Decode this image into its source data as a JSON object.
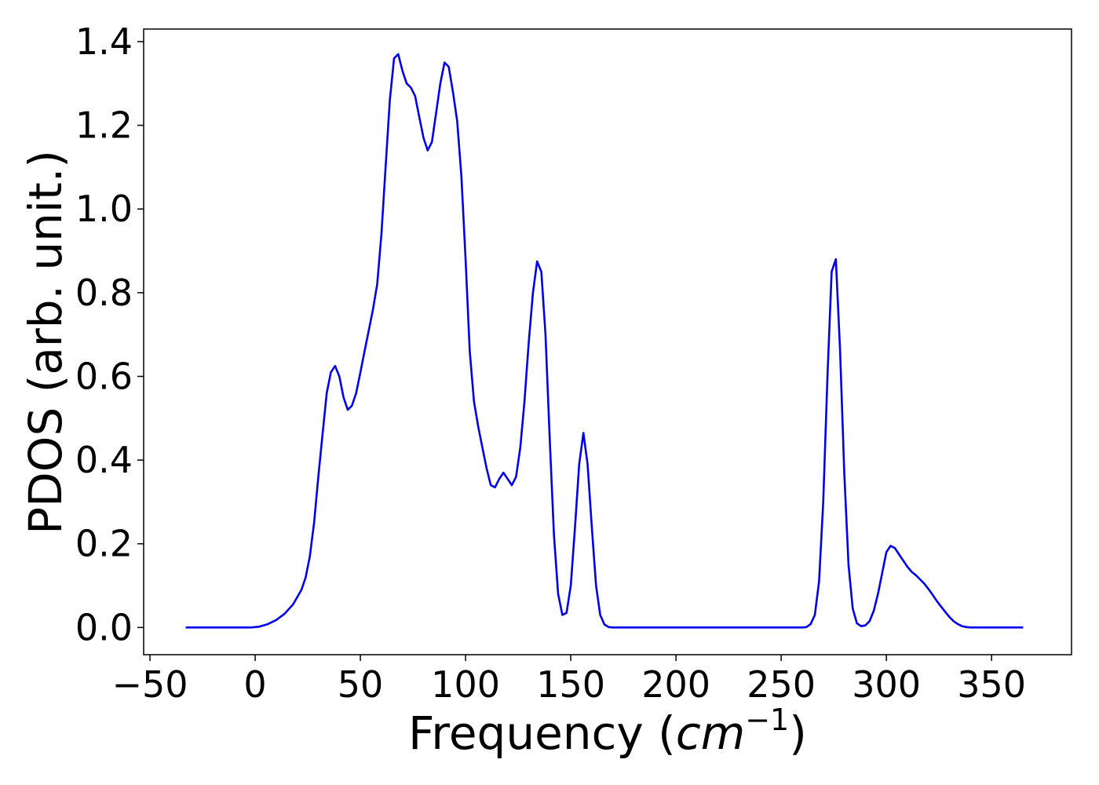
{
  "chart_data": {
    "type": "line",
    "title": "",
    "xlabel": "Frequency",
    "xlabel_unit": "cm",
    "xlabel_unit_exponent": "−1",
    "ylabel": "PDOS (arb. unit.)",
    "xlim": [
      -53,
      388
    ],
    "ylim": [
      -0.065,
      1.43
    ],
    "xticks": [
      -50,
      0,
      50,
      100,
      150,
      200,
      250,
      300,
      350
    ],
    "xtick_labels": [
      "−50",
      "0",
      "50",
      "100",
      "150",
      "200",
      "250",
      "300",
      "350"
    ],
    "yticks": [
      0.0,
      0.2,
      0.4,
      0.6,
      0.8,
      1.0,
      1.2,
      1.4
    ],
    "ytick_labels": [
      "0.0",
      "0.2",
      "0.4",
      "0.6",
      "0.8",
      "1.0",
      "1.2",
      "1.4"
    ],
    "grid": false,
    "legend": "none",
    "series": [
      {
        "color": "#0000ee",
        "x": [
          -33,
          -20,
          -10,
          -2,
          2,
          6,
          10,
          14,
          18,
          22,
          24,
          26,
          28,
          30,
          32,
          34,
          36,
          38,
          40,
          42,
          44,
          46,
          48,
          50,
          52,
          54,
          56,
          58,
          60,
          62,
          64,
          66,
          68,
          70,
          72,
          74,
          76,
          78,
          80,
          82,
          84,
          86,
          88,
          90,
          92,
          94,
          96,
          98,
          100,
          102,
          104,
          106,
          108,
          110,
          112,
          114,
          116,
          118,
          120,
          122,
          124,
          126,
          128,
          130,
          132,
          134,
          136,
          138,
          140,
          142,
          144,
          146,
          148,
          150,
          152,
          154,
          156,
          158,
          160,
          162,
          164,
          166,
          168,
          170,
          180,
          200,
          220,
          240,
          260,
          262,
          264,
          266,
          268,
          270,
          272,
          274,
          276,
          278,
          280,
          282,
          284,
          286,
          288,
          290,
          292,
          294,
          296,
          298,
          300,
          302,
          304,
          306,
          308,
          310,
          312,
          314,
          316,
          318,
          320,
          322,
          324,
          326,
          328,
          330,
          332,
          334,
          336,
          338,
          340,
          350,
          365
        ],
        "y": [
          0,
          0,
          0,
          0,
          0.002,
          0.008,
          0.018,
          0.033,
          0.055,
          0.09,
          0.12,
          0.17,
          0.25,
          0.36,
          0.46,
          0.56,
          0.61,
          0.625,
          0.6,
          0.55,
          0.52,
          0.53,
          0.56,
          0.61,
          0.66,
          0.71,
          0.76,
          0.82,
          0.94,
          1.1,
          1.26,
          1.36,
          1.37,
          1.33,
          1.3,
          1.29,
          1.27,
          1.22,
          1.17,
          1.14,
          1.16,
          1.23,
          1.3,
          1.35,
          1.34,
          1.28,
          1.21,
          1.08,
          0.88,
          0.66,
          0.54,
          0.48,
          0.43,
          0.38,
          0.34,
          0.335,
          0.355,
          0.37,
          0.355,
          0.34,
          0.36,
          0.43,
          0.54,
          0.68,
          0.8,
          0.875,
          0.85,
          0.7,
          0.45,
          0.22,
          0.08,
          0.03,
          0.035,
          0.1,
          0.24,
          0.39,
          0.465,
          0.39,
          0.24,
          0.1,
          0.03,
          0.007,
          0.001,
          0,
          0,
          0,
          0,
          0,
          0,
          0.001,
          0.008,
          0.03,
          0.11,
          0.3,
          0.6,
          0.85,
          0.88,
          0.66,
          0.37,
          0.15,
          0.045,
          0.01,
          0.003,
          0.005,
          0.015,
          0.04,
          0.08,
          0.13,
          0.18,
          0.195,
          0.19,
          0.175,
          0.16,
          0.145,
          0.133,
          0.125,
          0.115,
          0.105,
          0.092,
          0.078,
          0.063,
          0.05,
          0.037,
          0.025,
          0.015,
          0.008,
          0.003,
          0.001,
          0,
          0,
          0
        ]
      }
    ]
  }
}
